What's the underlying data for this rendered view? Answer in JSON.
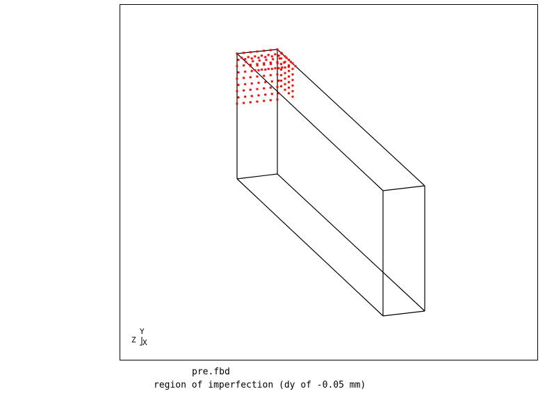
{
  "viewport": {
    "background": "#ffffff",
    "border_color": "#000000",
    "line_color": "#000000",
    "marker_color": "#ff0000"
  },
  "axes_triad": {
    "y_label": "Y",
    "z_label": "Z",
    "x_label": "X"
  },
  "captions": {
    "filename": "pre.fbd",
    "description": "region of imperfection (dy of -0.05 mm)"
  }
}
